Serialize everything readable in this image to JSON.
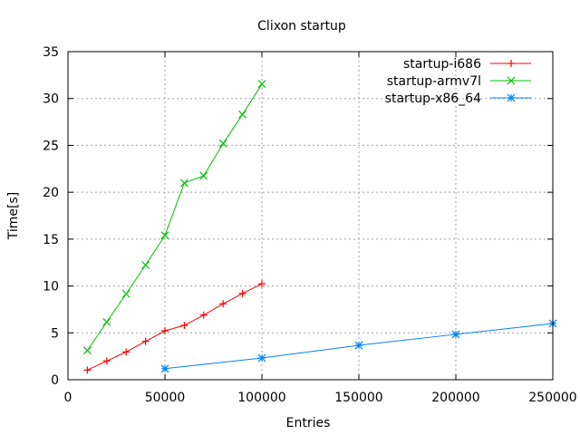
{
  "chart_data": {
    "type": "line",
    "title": "Clixon startup",
    "xlabel": "Entries",
    "ylabel": "Time[s]",
    "xlim": [
      0,
      250000
    ],
    "ylim": [
      0,
      35
    ],
    "xticks": [
      0,
      50000,
      100000,
      150000,
      200000,
      250000
    ],
    "yticks": [
      0,
      5,
      10,
      15,
      20,
      25,
      30,
      35
    ],
    "grid": true,
    "legend": "top-right",
    "series": [
      {
        "name": "startup-i686",
        "color": "#ff0000",
        "marker": "plus",
        "x": [
          10000,
          20000,
          30000,
          40000,
          50000,
          60000,
          70000,
          80000,
          90000,
          100000
        ],
        "y": [
          1.03,
          2.0,
          2.96,
          4.09,
          5.22,
          5.8,
          6.9,
          8.1,
          9.2,
          10.23
        ]
      },
      {
        "name": "startup-armv7l",
        "color": "#00c000",
        "marker": "cross",
        "x": [
          10000,
          20000,
          30000,
          40000,
          50000,
          60000,
          70000,
          80000,
          90000,
          100000
        ],
        "y": [
          3.12,
          6.16,
          9.16,
          12.23,
          15.4,
          20.99,
          21.76,
          25.2,
          28.3,
          31.55
        ]
      },
      {
        "name": "startup-x86_64",
        "color": "#0080ff",
        "marker": "star",
        "x": [
          50000,
          100000,
          150000,
          200000,
          250000
        ],
        "y": [
          1.18,
          2.32,
          3.67,
          4.84,
          6.0
        ]
      }
    ]
  }
}
